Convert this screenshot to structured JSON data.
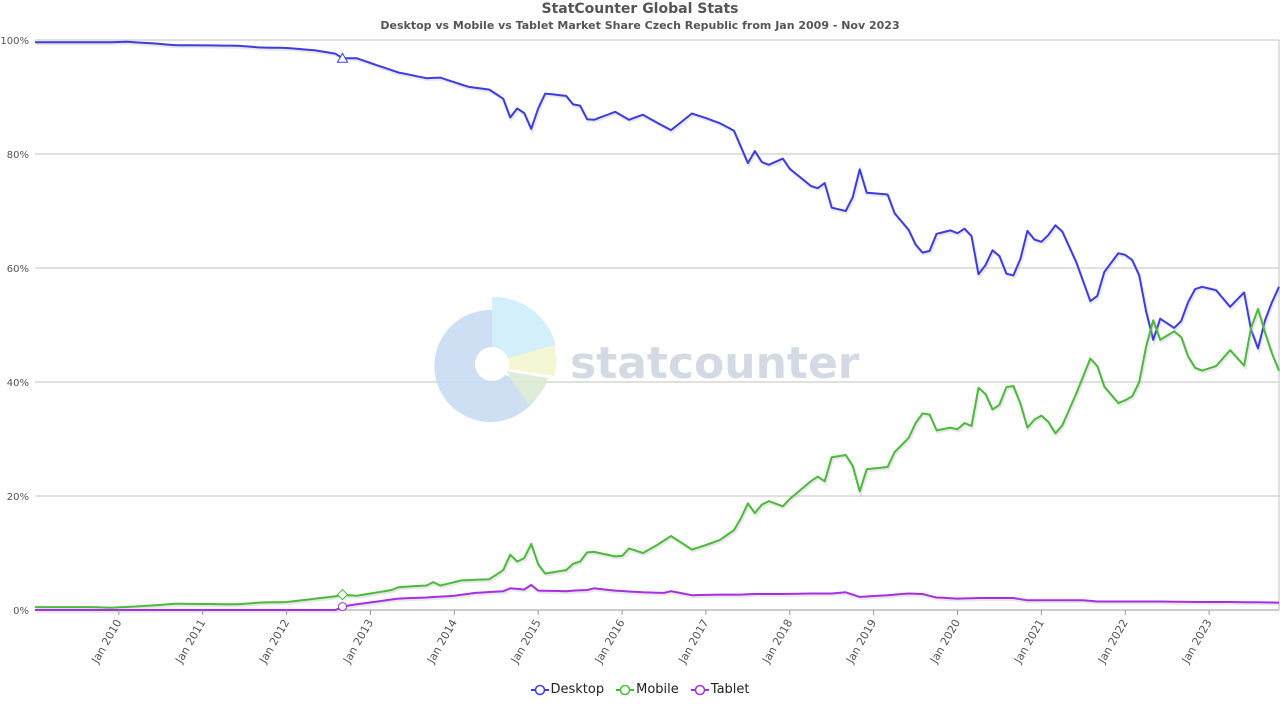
{
  "title": "StatCounter Global Stats",
  "subtitle": "Desktop vs Mobile vs Tablet Market Share Czech Republic from Jan 2009 - Nov 2023",
  "watermark": "statcounter",
  "chart_data": {
    "type": "line",
    "x_start": "Jan 2009",
    "x_end": "Nov 2023",
    "x_tick_labels": [
      "Jan 2010",
      "Jan 2011",
      "Jan 2012",
      "Jan 2013",
      "Jan 2014",
      "Jan 2015",
      "Jan 2016",
      "Jan 2017",
      "Jan 2018",
      "Jan 2019",
      "Jan 2020",
      "Jan 2021",
      "Jan 2022",
      "Jan 2023"
    ],
    "y_tick_labels": [
      "0%",
      "20%",
      "40%",
      "60%",
      "80%",
      "100%"
    ],
    "ylim": [
      0,
      100
    ],
    "grid": true,
    "legend_position": "bottom-center",
    "series": [
      {
        "name": "Desktop",
        "color": "#3c3ce0",
        "keyframes": [
          [
            "2009-01",
            99.6
          ],
          [
            "2009-12",
            99.6
          ],
          [
            "2010-02",
            99.7
          ],
          [
            "2010-06",
            99.4
          ],
          [
            "2010-09",
            99.1
          ],
          [
            "2011-06",
            99.0
          ],
          [
            "2011-09",
            98.7
          ],
          [
            "2012-01",
            98.6
          ],
          [
            "2012-05",
            98.2
          ],
          [
            "2012-08",
            97.6
          ],
          [
            "2012-09",
            96.8
          ],
          [
            "2012-11",
            96.8
          ],
          [
            "2013-05",
            94.3
          ],
          [
            "2013-09",
            93.3
          ],
          [
            "2013-11",
            93.4
          ],
          [
            "2014-03",
            91.8
          ],
          [
            "2014-06",
            91.3
          ],
          [
            "2014-08",
            89.7
          ],
          [
            "2014-09",
            86.4
          ],
          [
            "2014-10",
            88.0
          ],
          [
            "2014-11",
            87.2
          ],
          [
            "2014-12",
            84.4
          ],
          [
            "2015-01",
            88.0
          ],
          [
            "2015-02",
            90.6
          ],
          [
            "2015-05",
            90.2
          ],
          [
            "2015-06",
            88.7
          ],
          [
            "2015-07",
            88.5
          ],
          [
            "2015-08",
            86.1
          ],
          [
            "2015-09",
            86.0
          ],
          [
            "2015-12",
            87.4
          ],
          [
            "2016-02",
            86.0
          ],
          [
            "2016-04",
            86.9
          ],
          [
            "2016-06",
            85.5
          ],
          [
            "2016-08",
            84.2
          ],
          [
            "2016-11",
            87.1
          ],
          [
            "2017-01",
            86.3
          ],
          [
            "2017-03",
            85.4
          ],
          [
            "2017-05",
            84.1
          ],
          [
            "2017-07",
            78.4
          ],
          [
            "2017-08",
            80.5
          ],
          [
            "2017-09",
            78.6
          ],
          [
            "2017-10",
            78.1
          ],
          [
            "2017-12",
            79.2
          ],
          [
            "2018-01",
            77.4
          ],
          [
            "2018-04",
            74.4
          ],
          [
            "2018-05",
            74.0
          ],
          [
            "2018-06",
            74.9
          ],
          [
            "2018-07",
            70.6
          ],
          [
            "2018-09",
            70.0
          ],
          [
            "2018-10",
            72.4
          ],
          [
            "2018-11",
            77.3
          ],
          [
            "2018-12",
            73.2
          ],
          [
            "2019-03",
            72.9
          ],
          [
            "2019-04",
            69.6
          ],
          [
            "2019-06",
            66.7
          ],
          [
            "2019-07",
            64.1
          ],
          [
            "2019-08",
            62.7
          ],
          [
            "2019-09",
            63.0
          ],
          [
            "2019-10",
            66.0
          ],
          [
            "2019-12",
            66.6
          ],
          [
            "2020-01",
            66.1
          ],
          [
            "2020-02",
            66.9
          ],
          [
            "2020-03",
            65.6
          ],
          [
            "2020-04",
            58.9
          ],
          [
            "2020-05",
            60.5
          ],
          [
            "2020-06",
            63.1
          ],
          [
            "2020-07",
            62.1
          ],
          [
            "2020-08",
            59.0
          ],
          [
            "2020-09",
            58.7
          ],
          [
            "2020-10",
            61.6
          ],
          [
            "2020-11",
            66.5
          ],
          [
            "2020-12",
            65.0
          ],
          [
            "2021-01",
            64.6
          ],
          [
            "2021-02",
            65.8
          ],
          [
            "2021-03",
            67.5
          ],
          [
            "2021-04",
            66.4
          ],
          [
            "2021-06",
            61.0
          ],
          [
            "2021-08",
            54.2
          ],
          [
            "2021-09",
            55.1
          ],
          [
            "2021-10",
            59.3
          ],
          [
            "2021-12",
            62.6
          ],
          [
            "2022-01",
            62.3
          ],
          [
            "2022-02",
            61.4
          ],
          [
            "2022-03",
            58.7
          ],
          [
            "2022-04",
            52.3
          ],
          [
            "2022-05",
            47.4
          ],
          [
            "2022-06",
            51.1
          ],
          [
            "2022-08",
            49.5
          ],
          [
            "2022-09",
            50.7
          ],
          [
            "2022-10",
            54.0
          ],
          [
            "2022-11",
            56.3
          ],
          [
            "2022-12",
            56.7
          ],
          [
            "2023-01",
            56.4
          ],
          [
            "2023-02",
            56.1
          ],
          [
            "2023-04",
            53.2
          ],
          [
            "2023-06",
            55.7
          ],
          [
            "2023-07",
            49.2
          ],
          [
            "2023-08",
            45.9
          ],
          [
            "2023-09",
            50.8
          ],
          [
            "2023-10",
            54.0
          ],
          [
            "2023-11",
            56.7
          ]
        ]
      },
      {
        "name": "Mobile",
        "color": "#4bba3a",
        "keyframes": [
          [
            "2009-01",
            0.5
          ],
          [
            "2009-09",
            0.5
          ],
          [
            "2009-12",
            0.4
          ],
          [
            "2010-06",
            0.8
          ],
          [
            "2010-09",
            1.1
          ],
          [
            "2011-06",
            1.0
          ],
          [
            "2011-09",
            1.3
          ],
          [
            "2012-01",
            1.4
          ],
          [
            "2012-08",
            2.4
          ],
          [
            "2012-09",
            2.7
          ],
          [
            "2012-11",
            2.5
          ],
          [
            "2013-04",
            3.5
          ],
          [
            "2013-05",
            4.0
          ],
          [
            "2013-09",
            4.3
          ],
          [
            "2013-10",
            4.9
          ],
          [
            "2013-11",
            4.3
          ],
          [
            "2014-02",
            5.2
          ],
          [
            "2014-06",
            5.4
          ],
          [
            "2014-08",
            7.0
          ],
          [
            "2014-09",
            9.7
          ],
          [
            "2014-10",
            8.5
          ],
          [
            "2014-11",
            9.1
          ],
          [
            "2014-12",
            11.6
          ],
          [
            "2015-01",
            8.0
          ],
          [
            "2015-02",
            6.4
          ],
          [
            "2015-05",
            7.0
          ],
          [
            "2015-06",
            8.1
          ],
          [
            "2015-07",
            8.5
          ],
          [
            "2015-08",
            10.1
          ],
          [
            "2015-09",
            10.2
          ],
          [
            "2015-12",
            9.4
          ],
          [
            "2016-01",
            9.5
          ],
          [
            "2016-02",
            10.8
          ],
          [
            "2016-04",
            10.0
          ],
          [
            "2016-06",
            11.4
          ],
          [
            "2016-08",
            13.0
          ],
          [
            "2016-11",
            10.6
          ],
          [
            "2017-01",
            11.4
          ],
          [
            "2017-03",
            12.3
          ],
          [
            "2017-05",
            14.0
          ],
          [
            "2017-06",
            16.1
          ],
          [
            "2017-07",
            18.7
          ],
          [
            "2017-08",
            17.0
          ],
          [
            "2017-09",
            18.5
          ],
          [
            "2017-10",
            19.1
          ],
          [
            "2017-12",
            18.2
          ],
          [
            "2018-01",
            19.5
          ],
          [
            "2018-04",
            22.6
          ],
          [
            "2018-05",
            23.4
          ],
          [
            "2018-06",
            22.6
          ],
          [
            "2018-07",
            26.8
          ],
          [
            "2018-09",
            27.2
          ],
          [
            "2018-10",
            25.3
          ],
          [
            "2018-11",
            20.8
          ],
          [
            "2018-12",
            24.7
          ],
          [
            "2019-03",
            25.1
          ],
          [
            "2019-04",
            27.7
          ],
          [
            "2019-06",
            30.2
          ],
          [
            "2019-07",
            32.8
          ],
          [
            "2019-08",
            34.5
          ],
          [
            "2019-09",
            34.3
          ],
          [
            "2019-10",
            31.5
          ],
          [
            "2019-12",
            32.0
          ],
          [
            "2020-01",
            31.7
          ],
          [
            "2020-02",
            32.8
          ],
          [
            "2020-03",
            32.3
          ],
          [
            "2020-04",
            39.0
          ],
          [
            "2020-05",
            37.9
          ],
          [
            "2020-06",
            35.2
          ],
          [
            "2020-07",
            36.0
          ],
          [
            "2020-08",
            39.1
          ],
          [
            "2020-09",
            39.3
          ],
          [
            "2020-10",
            36.2
          ],
          [
            "2020-11",
            32.0
          ],
          [
            "2020-12",
            33.4
          ],
          [
            "2021-01",
            34.1
          ],
          [
            "2021-02",
            33.0
          ],
          [
            "2021-03",
            31.0
          ],
          [
            "2021-04",
            32.4
          ],
          [
            "2021-06",
            38.0
          ],
          [
            "2021-08",
            44.1
          ],
          [
            "2021-09",
            42.8
          ],
          [
            "2021-10",
            39.2
          ],
          [
            "2021-12",
            36.3
          ],
          [
            "2022-01",
            36.8
          ],
          [
            "2022-02",
            37.5
          ],
          [
            "2022-03",
            40.0
          ],
          [
            "2022-04",
            46.3
          ],
          [
            "2022-05",
            50.8
          ],
          [
            "2022-06",
            47.4
          ],
          [
            "2022-08",
            48.9
          ],
          [
            "2022-09",
            47.9
          ],
          [
            "2022-10",
            44.5
          ],
          [
            "2022-11",
            42.5
          ],
          [
            "2022-12",
            42.0
          ],
          [
            "2023-01",
            42.4
          ],
          [
            "2023-02",
            42.8
          ],
          [
            "2023-04",
            45.6
          ],
          [
            "2023-06",
            42.9
          ],
          [
            "2023-07",
            49.5
          ],
          [
            "2023-08",
            52.8
          ],
          [
            "2023-09",
            48.7
          ],
          [
            "2023-10",
            45.0
          ],
          [
            "2023-11",
            42.0
          ]
        ]
      },
      {
        "name": "Tablet",
        "color": "#a530e0",
        "keyframes": [
          [
            "2009-01",
            0.0
          ],
          [
            "2012-08",
            0.0
          ],
          [
            "2012-09",
            0.6
          ],
          [
            "2012-11",
            1.0
          ],
          [
            "2013-05",
            2.0
          ],
          [
            "2013-09",
            2.2
          ],
          [
            "2014-01",
            2.5
          ],
          [
            "2014-04",
            3.0
          ],
          [
            "2014-08",
            3.3
          ],
          [
            "2014-09",
            3.8
          ],
          [
            "2014-10",
            3.7
          ],
          [
            "2014-11",
            3.6
          ],
          [
            "2014-12",
            4.4
          ],
          [
            "2015-01",
            3.4
          ],
          [
            "2015-05",
            3.3
          ],
          [
            "2015-06",
            3.4
          ],
          [
            "2015-08",
            3.5
          ],
          [
            "2015-09",
            3.8
          ],
          [
            "2015-12",
            3.4
          ],
          [
            "2016-04",
            3.1
          ],
          [
            "2016-07",
            3.0
          ],
          [
            "2016-08",
            3.3
          ],
          [
            "2016-11",
            2.6
          ],
          [
            "2017-03",
            2.7
          ],
          [
            "2017-06",
            2.7
          ],
          [
            "2017-08",
            2.8
          ],
          [
            "2017-12",
            2.8
          ],
          [
            "2018-04",
            2.9
          ],
          [
            "2018-07",
            2.9
          ],
          [
            "2018-09",
            3.1
          ],
          [
            "2018-11",
            2.3
          ],
          [
            "2019-03",
            2.6
          ],
          [
            "2019-06",
            2.9
          ],
          [
            "2019-08",
            2.8
          ],
          [
            "2019-10",
            2.2
          ],
          [
            "2020-01",
            2.0
          ],
          [
            "2020-04",
            2.1
          ],
          [
            "2020-09",
            2.1
          ],
          [
            "2020-11",
            1.7
          ],
          [
            "2021-04",
            1.7
          ],
          [
            "2021-07",
            1.7
          ],
          [
            "2021-09",
            1.5
          ],
          [
            "2022-01",
            1.5
          ],
          [
            "2022-05",
            1.5
          ],
          [
            "2022-11",
            1.4
          ],
          [
            "2023-04",
            1.4
          ],
          [
            "2023-11",
            1.3
          ]
        ]
      }
    ]
  }
}
